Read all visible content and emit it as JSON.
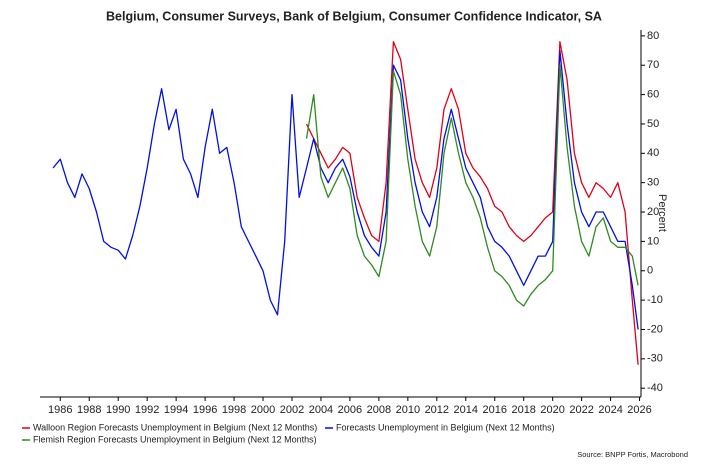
{
  "chart_data": {
    "type": "line",
    "title": "Belgium, Consumer Surveys, Bank of Belgium, Consumer Confidence Indicator, SA",
    "y_label": "Percent",
    "source": "Source: BNPP Fortis, Macrobond",
    "x": [
      1985.5,
      1986,
      1986.5,
      1987,
      1987.5,
      1988,
      1988.5,
      1989,
      1989.5,
      1990,
      1990.5,
      1991,
      1991.5,
      1992,
      1992.5,
      1993,
      1993.5,
      1994,
      1994.5,
      1995,
      1995.5,
      1996,
      1996.5,
      1997,
      1997.5,
      1998,
      1998.5,
      1999,
      1999.5,
      2000,
      2000.5,
      2001,
      2001.5,
      2002,
      2002.5,
      2003,
      2003.5,
      2004,
      2004.5,
      2005,
      2005.5,
      2006,
      2006.5,
      2007,
      2007.5,
      2008,
      2008.5,
      2009,
      2009.5,
      2010,
      2010.5,
      2011,
      2011.5,
      2012,
      2012.5,
      2013,
      2013.5,
      2014,
      2014.5,
      2015,
      2015.5,
      2016,
      2016.5,
      2017,
      2017.5,
      2018,
      2018.5,
      2019,
      2019.5,
      2020,
      2020.5,
      2021,
      2021.5,
      2022,
      2022.5,
      2023,
      2023.5,
      2024,
      2024.5,
      2025,
      2025.5,
      2025.9
    ],
    "series": [
      {
        "name": "Walloon Region Forecasts Unemployment in Belgium (Next 12 Months)",
        "color": "#e00018",
        "values": [
          null,
          null,
          null,
          null,
          null,
          null,
          null,
          null,
          null,
          null,
          null,
          null,
          null,
          null,
          null,
          null,
          null,
          null,
          null,
          null,
          null,
          null,
          null,
          null,
          null,
          null,
          null,
          null,
          null,
          null,
          null,
          null,
          null,
          null,
          null,
          50,
          45,
          40,
          35,
          38,
          42,
          40,
          25,
          18,
          12,
          10,
          30,
          78,
          72,
          55,
          38,
          30,
          25,
          35,
          55,
          62,
          55,
          40,
          35,
          32,
          28,
          22,
          20,
          15,
          12,
          10,
          12,
          15,
          18,
          20,
          78,
          65,
          40,
          30,
          25,
          30,
          28,
          25,
          30,
          20,
          -10,
          -32
        ]
      },
      {
        "name": "Forecasts Unemployment in Belgium (Next 12 Months)",
        "color": "#0010e0",
        "values": [
          35,
          38,
          30,
          25,
          33,
          28,
          20,
          10,
          8,
          7,
          4,
          12,
          22,
          35,
          50,
          62,
          48,
          55,
          38,
          33,
          25,
          42,
          55,
          40,
          42,
          30,
          15,
          10,
          5,
          0,
          -10,
          -15,
          10,
          60,
          25,
          35,
          45,
          35,
          30,
          35,
          38,
          32,
          20,
          12,
          8,
          5,
          20,
          70,
          65,
          45,
          30,
          20,
          15,
          25,
          45,
          55,
          45,
          35,
          30,
          25,
          15,
          10,
          8,
          5,
          0,
          -5,
          0,
          5,
          5,
          10,
          75,
          50,
          30,
          20,
          15,
          20,
          20,
          15,
          10,
          10,
          -5,
          -20
        ]
      },
      {
        "name": "Flemish Region Forecasts Unemployment in Belgium (Next 12 Months)",
        "color": "#2e8b1e",
        "values": [
          null,
          null,
          null,
          null,
          null,
          null,
          null,
          null,
          null,
          null,
          null,
          null,
          null,
          null,
          null,
          null,
          null,
          null,
          null,
          null,
          null,
          null,
          null,
          null,
          null,
          null,
          null,
          null,
          null,
          null,
          null,
          null,
          null,
          null,
          null,
          45,
          60,
          32,
          25,
          30,
          35,
          28,
          12,
          5,
          2,
          -2,
          10,
          68,
          60,
          38,
          22,
          10,
          5,
          15,
          40,
          52,
          40,
          30,
          25,
          18,
          8,
          0,
          -2,
          -5,
          -10,
          -12,
          -8,
          -5,
          -3,
          0,
          70,
          42,
          22,
          10,
          5,
          15,
          18,
          10,
          8,
          8,
          5,
          -5
        ]
      }
    ],
    "xlim": [
      1984.6,
      2026.1
    ],
    "xticks": [
      1986,
      1988,
      1990,
      1992,
      1994,
      1996,
      1998,
      2000,
      2002,
      2004,
      2006,
      2008,
      2010,
      2012,
      2014,
      2016,
      2018,
      2020,
      2022,
      2024,
      2026
    ],
    "ylim": [
      -43,
      82
    ],
    "yticks": [
      -40,
      -30,
      -20,
      -10,
      0,
      10,
      20,
      30,
      40,
      50,
      60,
      70,
      80
    ]
  }
}
